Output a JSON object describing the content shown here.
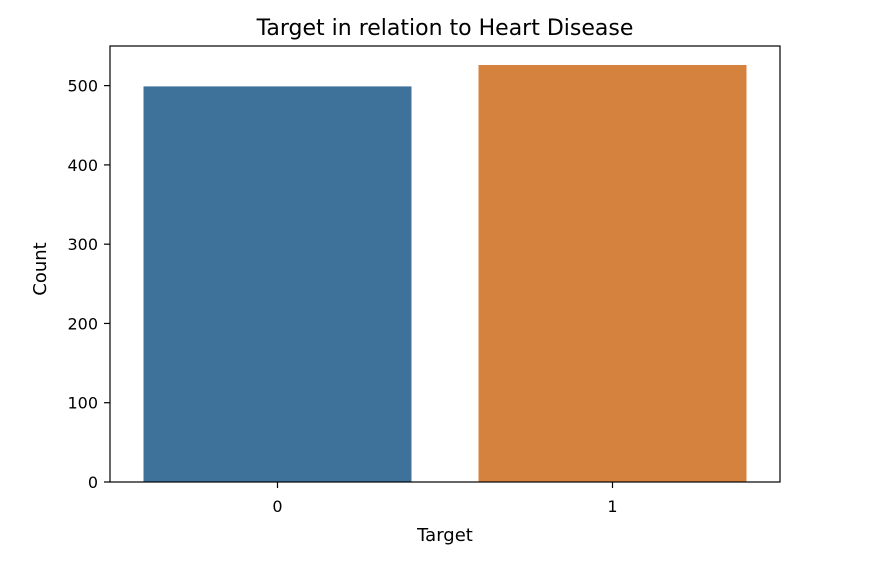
{
  "chart_data": {
    "type": "bar",
    "title": "Target in relation to Heart Disease",
    "xlabel": "Target",
    "ylabel": "Count",
    "categories": [
      "0",
      "1"
    ],
    "values": [
      499,
      526
    ],
    "colors": [
      "#3f729b",
      "#d5823f"
    ],
    "ylim": [
      0,
      550
    ],
    "yticks": [
      0,
      100,
      200,
      300,
      400,
      500
    ],
    "grid": false,
    "legend": false
  }
}
